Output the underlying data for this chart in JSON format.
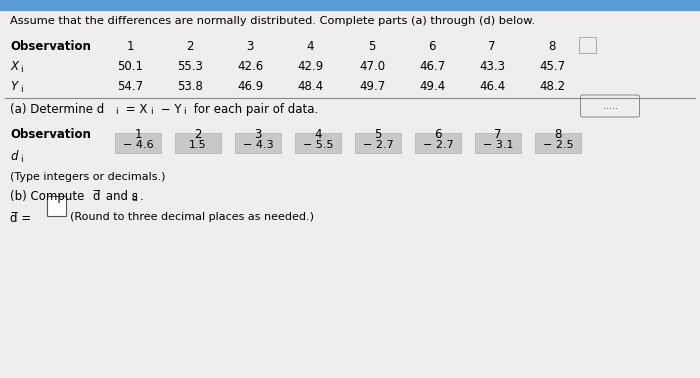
{
  "title": "Assume that the differences are normally distributed. Complete parts (a) through (d) below.",
  "bg_color": "#f0eeec",
  "observations": [
    1,
    2,
    3,
    4,
    5,
    6,
    7,
    8
  ],
  "X_values": [
    "50.1",
    "55.3",
    "42.6",
    "42.9",
    "47.0",
    "46.7",
    "43.3",
    "45.7"
  ],
  "Y_values": [
    "54.7",
    "53.8",
    "46.9",
    "48.4",
    "49.7",
    "49.4",
    "46.4",
    "48.2"
  ],
  "d_values": [
    -4.6,
    1.5,
    -4.3,
    -5.5,
    -2.7,
    -2.7,
    -3.1,
    -2.5
  ],
  "d_strings": [
    "-4.6",
    "1.5",
    "-4.3",
    "-5.5",
    "-2.7",
    "-2.7",
    "-3.1",
    "-2.5"
  ],
  "type_note": "(Type integers or decimals.)",
  "round_note": "(Round to three decimal places as needed.)",
  "cell_color": "#c8c8c8",
  "cell_edge": "#b0b0b0",
  "top_bar_color": "#5b9bd5",
  "line_color": "#888888"
}
